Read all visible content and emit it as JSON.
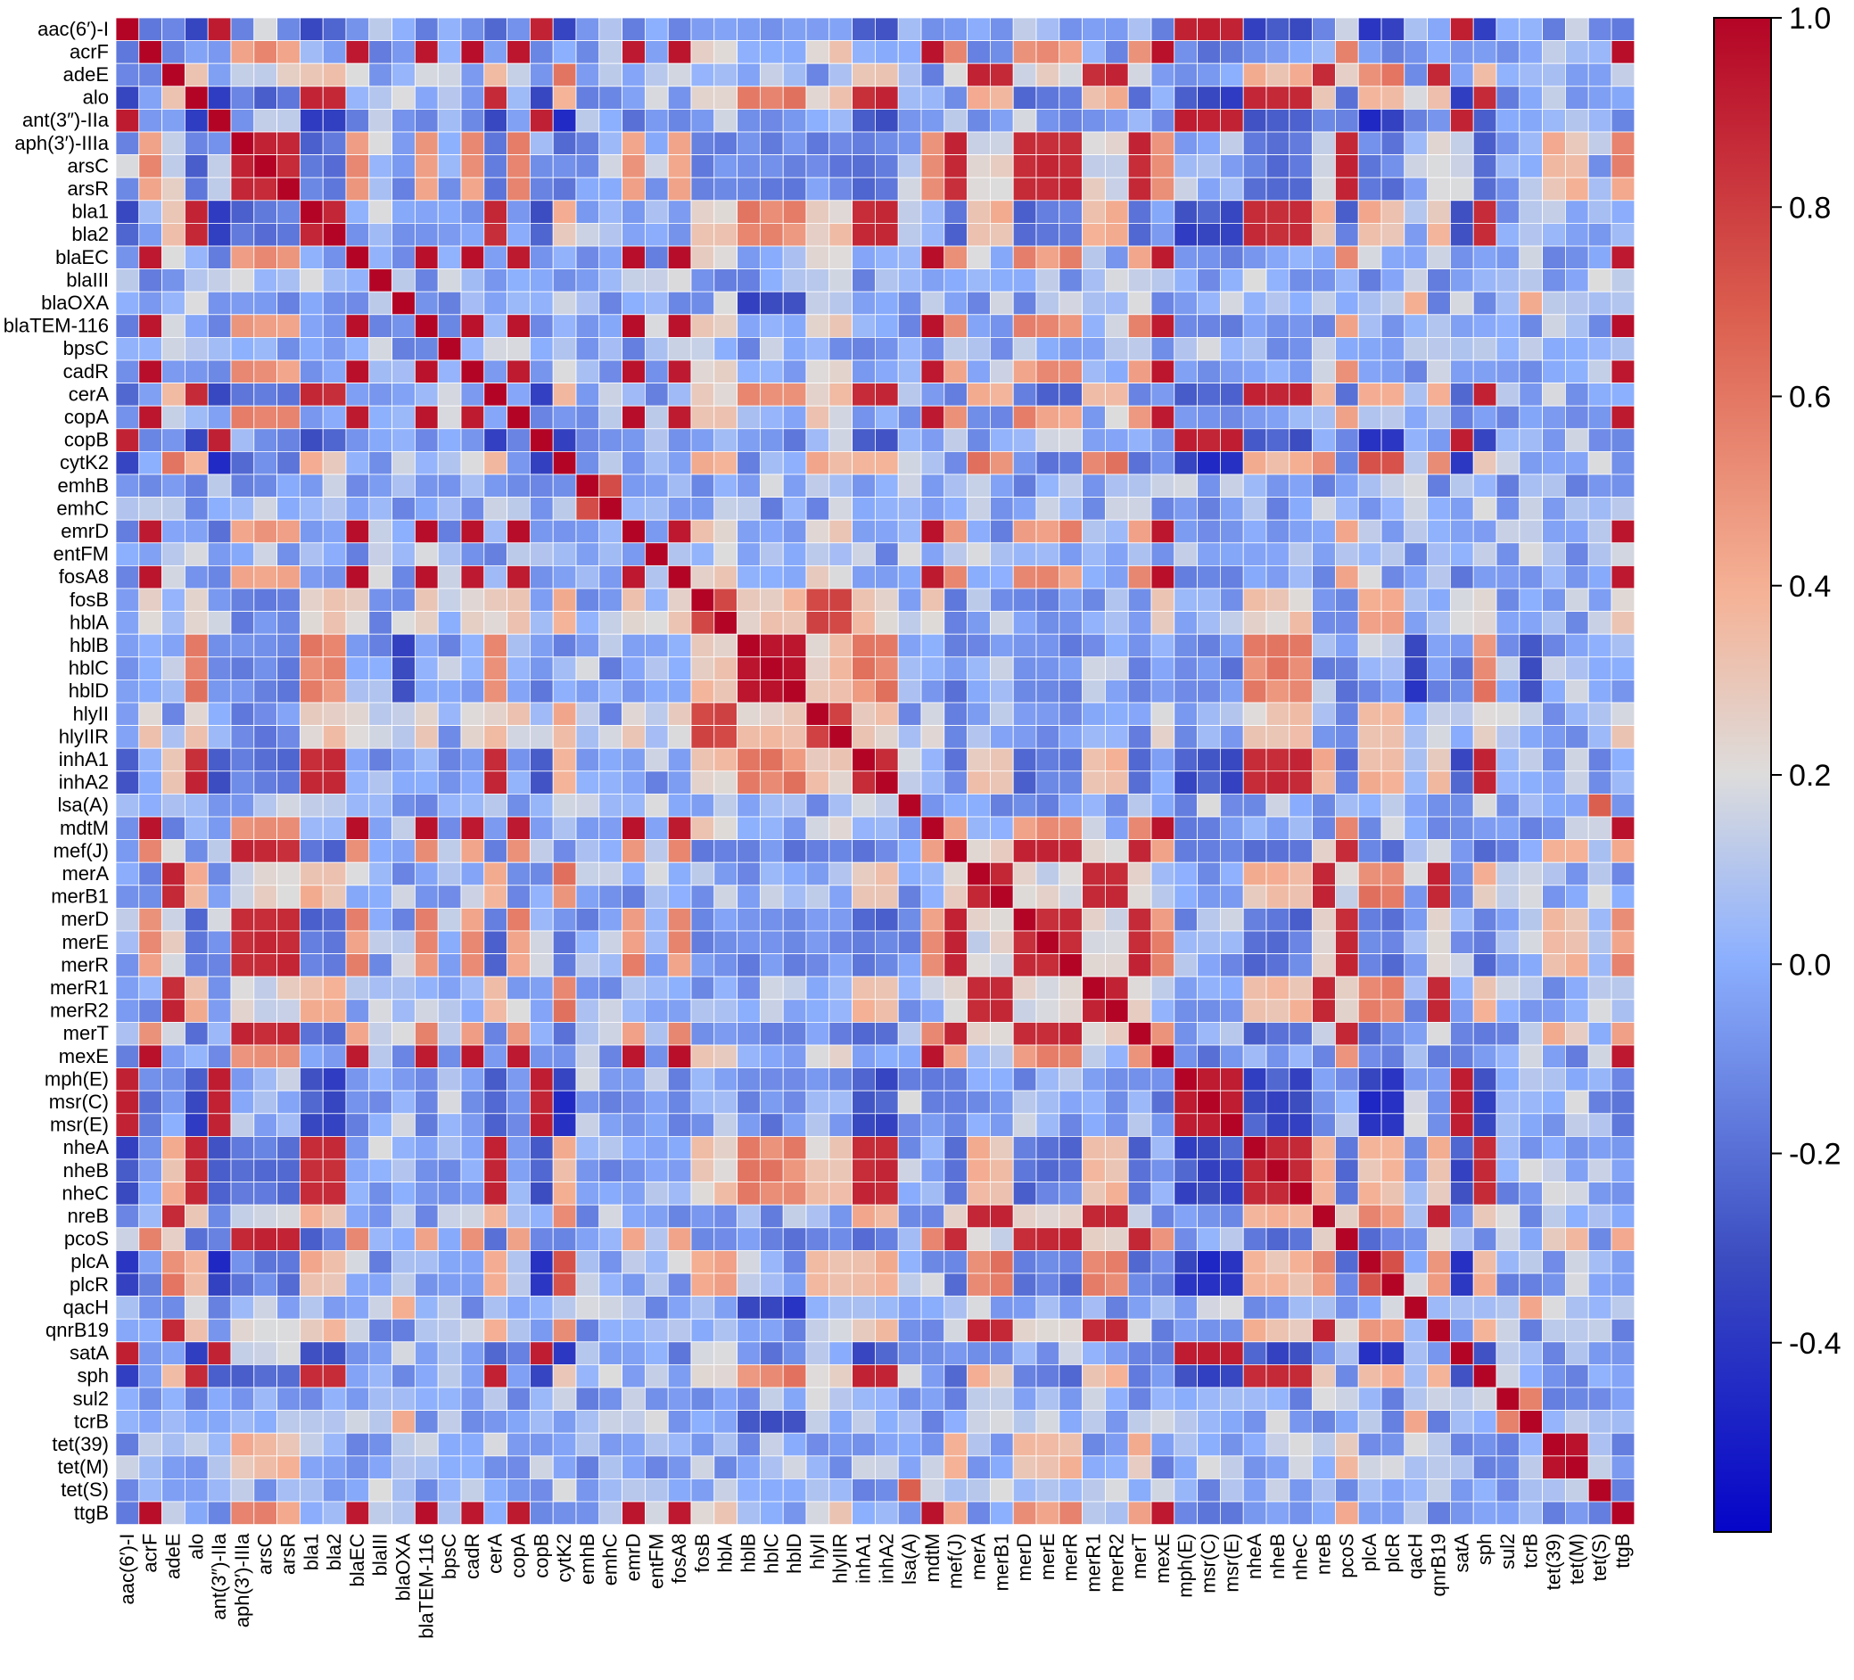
{
  "chart_data": {
    "type": "heatmap",
    "title": "",
    "xlabel": "",
    "ylabel": "",
    "labels": [
      "aac(6′)-I",
      "acrF",
      "adeE",
      "alo",
      "ant(3″)-IIa",
      "aph(3′)-IIIa",
      "arsC",
      "arsR",
      "bla1",
      "bla2",
      "blaEC",
      "blaIII",
      "blaOXA",
      "blaTEM-116",
      "bpsC",
      "cadR",
      "cerA",
      "copA",
      "copB",
      "cytK2",
      "emhB",
      "emhC",
      "emrD",
      "entFM",
      "fosA8",
      "fosB",
      "hblA",
      "hblB",
      "hblC",
      "hblD",
      "hlyII",
      "hlyIIR",
      "inhA1",
      "inhA2",
      "lsa(A)",
      "mdtM",
      "mef(J)",
      "merA",
      "merB1",
      "merD",
      "merE",
      "merR",
      "merR1",
      "merR2",
      "merT",
      "mexE",
      "mph(E)",
      "msr(C)",
      "msr(E)",
      "nheA",
      "nheB",
      "nheC",
      "nreB",
      "pcoS",
      "plcA",
      "plcR",
      "qacH",
      "qnrB19",
      "satA",
      "sph",
      "sul2",
      "tcrB",
      "tet(39)",
      "tet(M)",
      "tet(S)",
      "ttgB"
    ],
    "value_range": [
      -0.6,
      1.0
    ],
    "colormap": "coolwarm",
    "colorbar": {
      "ticks": [
        1.0,
        0.8,
        0.6,
        0.4,
        0.2,
        0.0,
        -0.2,
        -0.4
      ],
      "tick_labels": [
        "1.0",
        "0.8",
        "0.6",
        "0.4",
        "0.2",
        "0.0",
        "-0.2",
        "-0.4"
      ],
      "min": -0.6,
      "max": 1.0
    },
    "cell_grid_color": "#ffffff",
    "groups": [
      {
        "members": [
          "aac(6′)-I",
          "ant(3″)-IIa",
          "copB",
          "satA",
          "msr(C)",
          "msr(E)",
          "mph(E)"
        ],
        "within": 0.93
      },
      {
        "members": [
          "acrF",
          "blaEC",
          "blaTEM-116",
          "cadR",
          "copA",
          "emrD",
          "fosA8",
          "mdtM",
          "mexE",
          "ttgB"
        ],
        "within": 0.97
      },
      {
        "members": [
          "alo",
          "cerA",
          "inhA1",
          "inhA2",
          "nheA",
          "nheB",
          "nheC",
          "sph",
          "bla1",
          "bla2"
        ],
        "within": 0.9
      },
      {
        "members": [
          "hblB",
          "hblC",
          "hblD"
        ],
        "within": 0.97
      },
      {
        "members": [
          "hlyII",
          "hlyIIR",
          "fosB",
          "hblA"
        ],
        "within": 0.8
      },
      {
        "members": [
          "merA",
          "merB1",
          "merR1",
          "merR2",
          "adeE",
          "nreB",
          "qnrB19"
        ],
        "within": 0.9
      },
      {
        "members": [
          "arsC",
          "arsR",
          "merD",
          "merE",
          "merR",
          "merT",
          "pcoS",
          "aph(3′)-IIIa",
          "mef(J)"
        ],
        "within": 0.9
      },
      {
        "members": [
          "emhB",
          "emhC"
        ],
        "within": 0.78
      },
      {
        "members": [
          "tet(39)",
          "tet(M)"
        ],
        "within": 0.97
      },
      {
        "members": [
          "plcA",
          "plcR",
          "cytK2"
        ],
        "within": 0.75
      },
      {
        "members": [
          "sul2",
          "tcrB"
        ],
        "within": 0.6
      },
      {
        "members": [
          "tet(S)",
          "lsa(A)"
        ],
        "within": 0.72
      },
      {
        "members": [
          "blaOXA",
          "tcrB",
          "qacH"
        ],
        "within": 0.45
      }
    ],
    "group_correlations": [
      {
        "a": 0,
        "b": 1,
        "value": -0.12
      },
      {
        "a": 0,
        "b": 2,
        "value": -0.3
      },
      {
        "a": 0,
        "b": 3,
        "value": -0.12
      },
      {
        "a": 0,
        "b": 5,
        "value": -0.05
      },
      {
        "a": 0,
        "b": 9,
        "value": -0.4
      },
      {
        "a": 0,
        "b": 10,
        "value": 0.05
      },
      {
        "a": 1,
        "b": 2,
        "value": -0.02
      },
      {
        "a": 1,
        "b": 6,
        "value": 0.5
      },
      {
        "a": 1,
        "b": 4,
        "value": 0.25
      },
      {
        "a": 1,
        "b": 3,
        "value": 0.0
      },
      {
        "a": 2,
        "b": 3,
        "value": 0.55
      },
      {
        "a": 2,
        "b": 4,
        "value": 0.28
      },
      {
        "a": 2,
        "b": 5,
        "value": 0.35
      },
      {
        "a": 2,
        "b": 6,
        "value": -0.18
      },
      {
        "a": 2,
        "b": 9,
        "value": 0.35
      },
      {
        "a": 3,
        "b": 4,
        "value": 0.3
      },
      {
        "a": 3,
        "b": 6,
        "value": -0.12
      },
      {
        "a": 3,
        "b": 12,
        "value": -0.35
      },
      {
        "a": 4,
        "b": 6,
        "value": -0.1
      },
      {
        "a": 4,
        "b": 9,
        "value": 0.4
      },
      {
        "a": 5,
        "b": 6,
        "value": 0.2
      },
      {
        "a": 5,
        "b": 9,
        "value": 0.55
      },
      {
        "a": 6,
        "b": 9,
        "value": -0.15
      },
      {
        "a": 6,
        "b": 8,
        "value": 0.35
      }
    ],
    "default_offdiagonal": 0.02
  }
}
